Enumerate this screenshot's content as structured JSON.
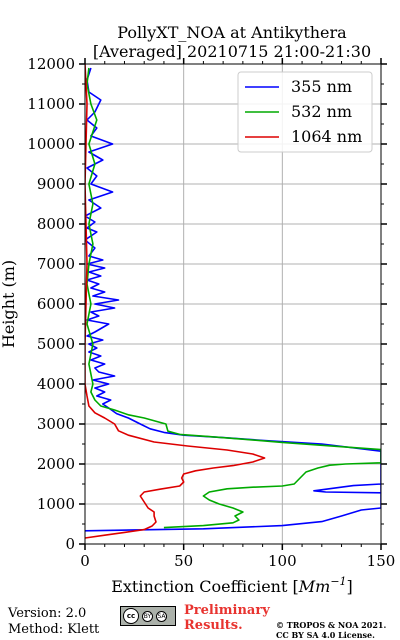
{
  "chart_data": {
    "type": "line",
    "title": "PollyXT_NOA at Antikythera",
    "subtitle": "[Averaged] 20210715 21:00-21:30",
    "xlabel": "Extinction Coefficient [",
    "xlabel_unit": "Mm",
    "xlabel_exp": "−1",
    "xlabel_close": "]",
    "ylabel": "Height (m)",
    "xlim": [
      0,
      150
    ],
    "ylim": [
      0,
      12000
    ],
    "xticks": [
      0,
      50,
      100,
      150
    ],
    "yticks": [
      0,
      1000,
      2000,
      3000,
      4000,
      5000,
      6000,
      7000,
      8000,
      9000,
      10000,
      11000,
      12000
    ],
    "grid": true,
    "legend_position": "top-right",
    "series": [
      {
        "name": "355 nm",
        "color": "#0000ff",
        "points": [
          [
            0,
            330
          ],
          [
            60,
            380
          ],
          [
            100,
            460
          ],
          [
            120,
            560
          ],
          [
            130,
            700
          ],
          [
            140,
            850
          ],
          [
            150,
            900
          ],
          [
            150,
            1500
          ],
          [
            136,
            1460
          ],
          [
            116,
            1330
          ],
          [
            122,
            1300
          ],
          [
            150,
            1280
          ],
          [
            150,
            2320
          ],
          [
            120,
            2500
          ],
          [
            90,
            2590
          ],
          [
            70,
            2660
          ],
          [
            50,
            2720
          ],
          [
            40,
            2790
          ],
          [
            33,
            2880
          ],
          [
            28,
            3000
          ],
          [
            22,
            3150
          ],
          [
            16,
            3260
          ],
          [
            12,
            3400
          ],
          [
            9,
            3500
          ],
          [
            13,
            3600
          ],
          [
            6,
            3700
          ],
          [
            10,
            3800
          ],
          [
            5,
            3900
          ],
          [
            12,
            4000
          ],
          [
            4,
            4100
          ],
          [
            15,
            4200
          ],
          [
            7,
            4300
          ],
          [
            5,
            4400
          ],
          [
            10,
            4500
          ],
          [
            3,
            4600
          ],
          [
            8,
            4700
          ],
          [
            2,
            4800
          ],
          [
            6,
            4900
          ],
          [
            2,
            5000
          ],
          [
            9,
            5100
          ],
          [
            1,
            5200
          ],
          [
            5,
            5300
          ],
          [
            12,
            5500
          ],
          [
            1,
            5600
          ],
          [
            7,
            5700
          ],
          [
            3,
            5800
          ],
          [
            15,
            5900
          ],
          [
            5,
            6000
          ],
          [
            17,
            6100
          ],
          [
            4,
            6200
          ],
          [
            10,
            6300
          ],
          [
            3,
            6400
          ],
          [
            7,
            6500
          ],
          [
            1,
            6600
          ],
          [
            8,
            6700
          ],
          [
            2,
            6800
          ],
          [
            10,
            6900
          ],
          [
            1,
            7000
          ],
          [
            9,
            7100
          ],
          [
            2,
            7200
          ],
          [
            5,
            7400
          ],
          [
            0,
            7600
          ],
          [
            6,
            7800
          ],
          [
            1,
            7900
          ],
          [
            5,
            8050
          ],
          [
            0,
            8200
          ],
          [
            8,
            8400
          ],
          [
            2,
            8600
          ],
          [
            14,
            8800
          ],
          [
            3,
            9000
          ],
          [
            6,
            9200
          ],
          [
            1,
            9400
          ],
          [
            9,
            9600
          ],
          [
            2,
            9800
          ],
          [
            14,
            10000
          ],
          [
            3,
            10200
          ],
          [
            6,
            10400
          ],
          [
            1,
            10600
          ],
          [
            5,
            10800
          ],
          [
            8,
            11100
          ],
          [
            2,
            11300
          ],
          [
            1,
            11600
          ],
          [
            3,
            11900
          ]
        ]
      },
      {
        "name": "532 nm",
        "color": "#00aa00",
        "points": [
          [
            40,
            410
          ],
          [
            60,
            460
          ],
          [
            75,
            530
          ],
          [
            78,
            600
          ],
          [
            76,
            700
          ],
          [
            80,
            800
          ],
          [
            75,
            900
          ],
          [
            68,
            1000
          ],
          [
            63,
            1100
          ],
          [
            60,
            1200
          ],
          [
            63,
            1300
          ],
          [
            72,
            1380
          ],
          [
            85,
            1420
          ],
          [
            100,
            1450
          ],
          [
            106,
            1500
          ],
          [
            108,
            1600
          ],
          [
            112,
            1800
          ],
          [
            118,
            1900
          ],
          [
            124,
            1970
          ],
          [
            132,
            2000
          ],
          [
            150,
            2030
          ],
          [
            150,
            2360
          ],
          [
            128,
            2440
          ],
          [
            100,
            2540
          ],
          [
            80,
            2620
          ],
          [
            62,
            2690
          ],
          [
            48,
            2740
          ],
          [
            42,
            2820
          ],
          [
            41,
            3000
          ],
          [
            30,
            3150
          ],
          [
            22,
            3230
          ],
          [
            15,
            3350
          ],
          [
            8,
            3450
          ],
          [
            5,
            3600
          ],
          [
            3,
            3800
          ],
          [
            4,
            4000
          ],
          [
            2,
            4500
          ],
          [
            4,
            5000
          ],
          [
            1,
            5500
          ],
          [
            3,
            6000
          ],
          [
            1,
            6500
          ],
          [
            2,
            7000
          ],
          [
            4,
            7500
          ],
          [
            2,
            8000
          ],
          [
            4,
            8500
          ],
          [
            2,
            9000
          ],
          [
            5,
            9500
          ],
          [
            2,
            10000
          ],
          [
            6,
            10600
          ],
          [
            3,
            11000
          ],
          [
            1,
            11500
          ],
          [
            2,
            11900
          ]
        ]
      },
      {
        "name": "1064 nm",
        "color": "#dd0000",
        "points": [
          [
            0,
            150
          ],
          [
            10,
            220
          ],
          [
            20,
            290
          ],
          [
            30,
            360
          ],
          [
            34,
            450
          ],
          [
            36,
            550
          ],
          [
            35,
            700
          ],
          [
            35,
            800
          ],
          [
            32,
            900
          ],
          [
            30,
            1050
          ],
          [
            28,
            1200
          ],
          [
            30,
            1300
          ],
          [
            38,
            1370
          ],
          [
            48,
            1450
          ],
          [
            50,
            1550
          ],
          [
            49,
            1650
          ],
          [
            50,
            1750
          ],
          [
            56,
            1830
          ],
          [
            65,
            1900
          ],
          [
            75,
            1960
          ],
          [
            85,
            2050
          ],
          [
            91,
            2150
          ],
          [
            85,
            2250
          ],
          [
            72,
            2350
          ],
          [
            52,
            2450
          ],
          [
            35,
            2550
          ],
          [
            22,
            2720
          ],
          [
            17,
            2830
          ],
          [
            15,
            3000
          ],
          [
            10,
            3150
          ],
          [
            5,
            3280
          ],
          [
            2,
            3450
          ],
          [
            1,
            3700
          ],
          [
            0,
            4000
          ],
          [
            0,
            5000
          ],
          [
            1,
            7000
          ],
          [
            0,
            9000
          ],
          [
            1,
            11000
          ],
          [
            0,
            12000
          ]
        ]
      }
    ]
  },
  "footer": {
    "version": "Version: 2.0",
    "method": "Method: Klett",
    "badge_cc": "cc",
    "badge_by": "BY",
    "badge_sa": "SA",
    "preliminary_line1": "Preliminary",
    "preliminary_line2": "Results.",
    "copyright_line1": "© TROPOS & NOA 2021.",
    "copyright_line2": "CC BY SA 4.0 License."
  }
}
